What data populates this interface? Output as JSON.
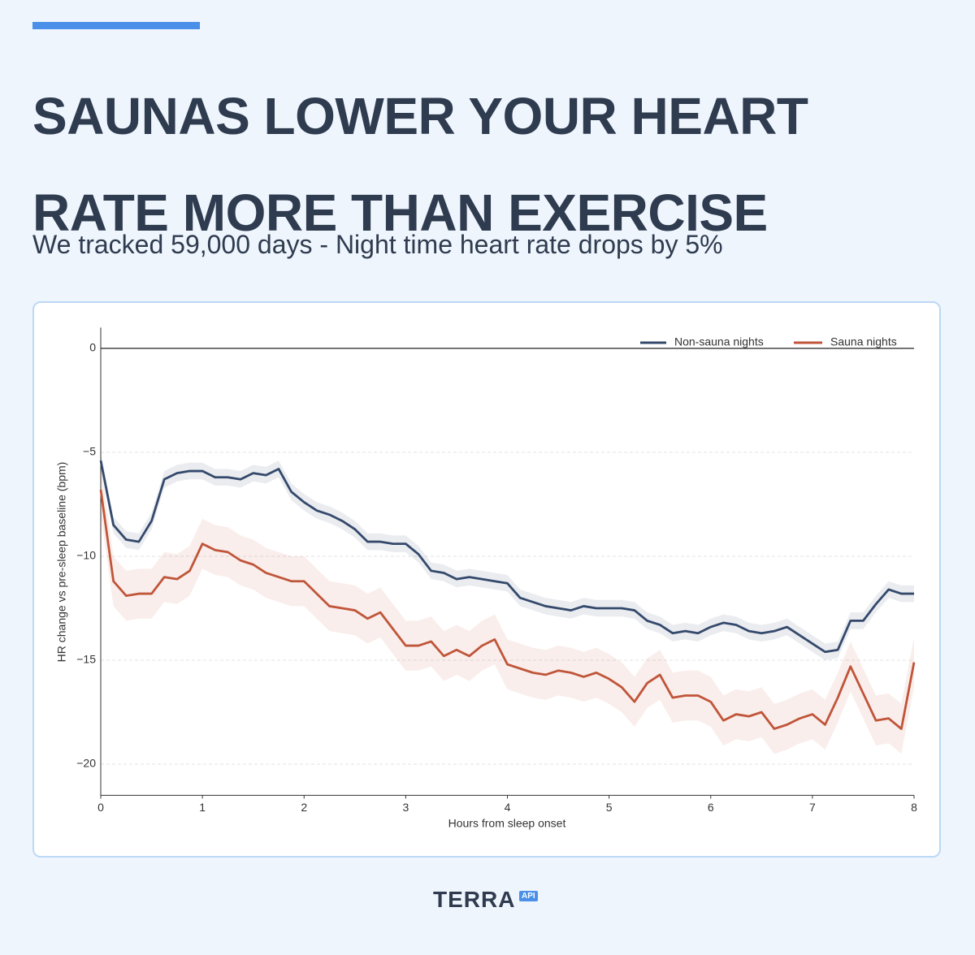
{
  "header": {
    "title": [
      "SAUNAS LOWER YOUR HEART",
      "RATE MORE THAN EXERCISE"
    ],
    "subtitle": "We tracked 59,000 days - Night time heart rate drops by 5%"
  },
  "chart_data": {
    "type": "line",
    "x": [
      0,
      0.125,
      0.25,
      0.375,
      0.5,
      0.625,
      0.75,
      0.875,
      1,
      1.125,
      1.25,
      1.375,
      1.5,
      1.625,
      1.75,
      1.875,
      2,
      2.125,
      2.25,
      2.375,
      2.5,
      2.625,
      2.75,
      2.875,
      3,
      3.125,
      3.25,
      3.375,
      3.5,
      3.625,
      3.75,
      3.875,
      4,
      4.125,
      4.25,
      4.375,
      4.5,
      4.625,
      4.75,
      4.875,
      5,
      5.125,
      5.25,
      5.375,
      5.5,
      5.625,
      5.75,
      5.875,
      6,
      6.125,
      6.25,
      6.375,
      6.5,
      6.625,
      6.75,
      6.875,
      7,
      7.125,
      7.25,
      7.375,
      7.5,
      7.625,
      7.75,
      7.875,
      8
    ],
    "series": [
      {
        "name": "Non-sauna nights",
        "color": "#34496b",
        "ci": 0.4,
        "values": [
          -5.4,
          -8.5,
          -9.2,
          -9.3,
          -8.3,
          -6.3,
          -6.0,
          -5.9,
          -5.9,
          -6.2,
          -6.2,
          -6.3,
          -6.0,
          -6.1,
          -5.8,
          -6.9,
          -7.4,
          -7.8,
          -8.0,
          -8.3,
          -8.7,
          -9.3,
          -9.3,
          -9.4,
          -9.4,
          -9.9,
          -10.7,
          -10.8,
          -11.1,
          -11.0,
          -11.1,
          -11.2,
          -11.3,
          -12.0,
          -12.2,
          -12.4,
          -12.5,
          -12.6,
          -12.4,
          -12.5,
          -12.5,
          -12.5,
          -12.6,
          -13.1,
          -13.3,
          -13.7,
          -13.6,
          -13.7,
          -13.4,
          -13.2,
          -13.3,
          -13.6,
          -13.7,
          -13.6,
          -13.4,
          -13.8,
          -14.2,
          -14.6,
          -14.5,
          -13.1,
          -13.1,
          -12.3,
          -11.6,
          -11.8,
          -11.8
        ]
      },
      {
        "name": "Sauna nights",
        "color": "#c0553a",
        "ci": 1.2,
        "values": [
          -6.8,
          -11.2,
          -11.9,
          -11.8,
          -11.8,
          -11.0,
          -11.1,
          -10.7,
          -9.4,
          -9.7,
          -9.8,
          -10.2,
          -10.4,
          -10.8,
          -11.0,
          -11.2,
          -11.2,
          -11.8,
          -12.4,
          -12.5,
          -12.6,
          -13.0,
          -12.7,
          -13.5,
          -14.3,
          -14.3,
          -14.1,
          -14.8,
          -14.5,
          -14.8,
          -14.3,
          -14.0,
          -15.2,
          -15.4,
          -15.6,
          -15.7,
          -15.5,
          -15.6,
          -15.8,
          -15.6,
          -15.9,
          -16.3,
          -17.0,
          -16.1,
          -15.7,
          -16.8,
          -16.7,
          -16.7,
          -17.0,
          -17.9,
          -17.6,
          -17.7,
          -17.5,
          -18.3,
          -18.1,
          -17.8,
          -17.6,
          -18.1,
          -16.8,
          -15.3,
          -16.6,
          -17.9,
          -17.8,
          -18.3,
          -15.1
        ]
      }
    ],
    "x_label": "Hours from sleep onset",
    "y_label": "HR change vs pre-sleep baseline (bpm)",
    "xlim": [
      0,
      8
    ],
    "xticks": [
      0,
      1,
      2,
      3,
      4,
      5,
      6,
      7,
      8
    ],
    "ylim": [
      -21.5,
      1
    ],
    "yticks": [
      0,
      {
        "value": -5,
        "label": "−5"
      },
      {
        "value": -10,
        "label": "−10"
      },
      {
        "value": -15,
        "label": "−15"
      },
      {
        "value": -20,
        "label": "−20"
      }
    ],
    "reference_line": 0,
    "grid": true,
    "legend": "upper right"
  },
  "footer": {
    "logo": "TERRA",
    "badge": "API"
  }
}
